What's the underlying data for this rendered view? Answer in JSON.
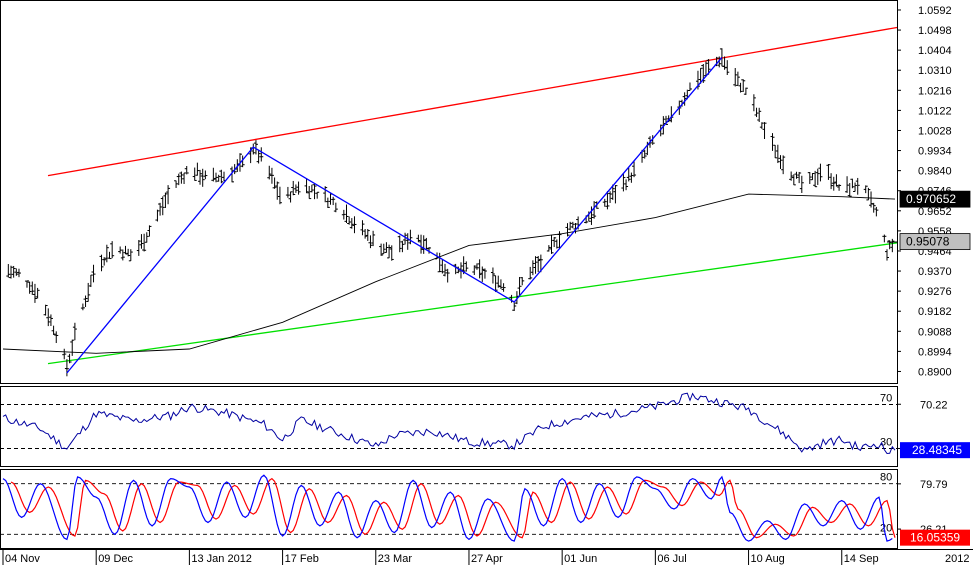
{
  "chart_data": [
    {
      "type": "candlestick",
      "panel": "price",
      "x_axis_type": "date",
      "x_tick_labels": [
        "04 Nov",
        "09 Dec",
        "13 Jan 2012",
        "17 Feb",
        "23 Mar",
        "27 Apr",
        "01 Jun",
        "06 Jul",
        "10 Aug",
        "14 Sep"
      ],
      "x_tick_dates": [
        "2011-11-04",
        "2011-12-09",
        "2012-01-13",
        "2012-02-17",
        "2012-03-23",
        "2012-04-27",
        "2012-06-01",
        "2012-07-06",
        "2012-08-10",
        "2012-09-14"
      ],
      "axis_end_label": "2012",
      "x_range": [
        "2011-11-04",
        "2012-10-04"
      ],
      "y_tick_labels": [
        "1.0592",
        "1.0498",
        "1.0404",
        "1.0310",
        "1.0216",
        "1.0122",
        "1.0028",
        "0.9934",
        "0.9840",
        "0.9746",
        "0.9652",
        "0.9558",
        "0.9464",
        "0.9370",
        "0.9276",
        "0.9182",
        "0.9088",
        "0.8994",
        "0.8900"
      ],
      "ylim": [
        0.886,
        1.062
      ],
      "series": [
        {
          "name": "",
          "kind": "ohlc_close",
          "points": [
            [
              "2011-11-04",
              0.938
            ],
            [
              "2011-11-11",
              0.935
            ],
            [
              "2011-11-18",
              0.925
            ],
            [
              "2011-11-25",
              0.905
            ],
            [
              "2011-11-28",
              0.892
            ],
            [
              "2011-12-02",
              0.912
            ],
            [
              "2011-12-09",
              0.94
            ],
            [
              "2011-12-16",
              0.948
            ],
            [
              "2011-12-23",
              0.944
            ],
            [
              "2011-12-30",
              0.958
            ],
            [
              "2012-01-06",
              0.975
            ],
            [
              "2012-01-13",
              0.985
            ],
            [
              "2012-01-20",
              0.98
            ],
            [
              "2012-01-27",
              0.982
            ],
            [
              "2012-02-03",
              0.988
            ],
            [
              "2012-02-06",
              0.995
            ],
            [
              "2012-02-10",
              0.988
            ],
            [
              "2012-02-17",
              0.97
            ],
            [
              "2012-02-24",
              0.978
            ],
            [
              "2012-03-02",
              0.973
            ],
            [
              "2012-03-09",
              0.968
            ],
            [
              "2012-03-16",
              0.958
            ],
            [
              "2012-03-23",
              0.95
            ],
            [
              "2012-03-30",
              0.945
            ],
            [
              "2012-04-06",
              0.955
            ],
            [
              "2012-04-13",
              0.947
            ],
            [
              "2012-04-20",
              0.935
            ],
            [
              "2012-04-27",
              0.939
            ],
            [
              "2012-05-04",
              0.935
            ],
            [
              "2012-05-11",
              0.93
            ],
            [
              "2012-05-14",
              0.922
            ],
            [
              "2012-05-18",
              0.935
            ],
            [
              "2012-05-25",
              0.942
            ],
            [
              "2012-06-01",
              0.955
            ],
            [
              "2012-06-08",
              0.96
            ],
            [
              "2012-06-15",
              0.967
            ],
            [
              "2012-06-22",
              0.975
            ],
            [
              "2012-06-29",
              0.985
            ],
            [
              "2012-07-06",
              1.0
            ],
            [
              "2012-07-13",
              1.01
            ],
            [
              "2012-07-20",
              1.025
            ],
            [
              "2012-07-27",
              1.033
            ],
            [
              "2012-07-31",
              1.037
            ],
            [
              "2012-08-03",
              1.03
            ],
            [
              "2012-08-10",
              1.02
            ],
            [
              "2012-08-17",
              1.0
            ],
            [
              "2012-08-24",
              0.986
            ],
            [
              "2012-08-31",
              0.976
            ],
            [
              "2012-09-07",
              0.985
            ],
            [
              "2012-09-14",
              0.975
            ],
            [
              "2012-09-21",
              0.978
            ],
            [
              "2012-09-28",
              0.962
            ],
            [
              "2012-10-01",
              0.946
            ],
            [
              "2012-10-04",
              0.951
            ]
          ]
        },
        {
          "name": "",
          "kind": "moving_average",
          "points": [
            [
              "2011-11-04",
              0.9005
            ],
            [
              "2011-12-09",
              0.8985
            ],
            [
              "2012-01-13",
              0.9005
            ],
            [
              "2012-02-17",
              0.913
            ],
            [
              "2012-03-23",
              0.932
            ],
            [
              "2012-04-27",
              0.949
            ],
            [
              "2012-06-01",
              0.9545
            ],
            [
              "2012-07-06",
              0.962
            ],
            [
              "2012-08-10",
              0.973
            ],
            [
              "2012-09-14",
              0.9718
            ],
            [
              "2012-10-04",
              0.9707
            ]
          ]
        }
      ],
      "channel_upper": {
        "color": "#ff0000",
        "points": [
          [
            "2011-11-04",
            0.9763
          ],
          [
            "2012-10-04",
            1.051
          ]
        ]
      },
      "channel_lower": {
        "color": "#00e000",
        "points": [
          [
            "2011-11-04",
            0.8893
          ],
          [
            "2012-10-04",
            0.9502
          ]
        ]
      },
      "zigzag": {
        "color": "#0000ff",
        "points": [
          [
            "2011-11-28",
            0.8893
          ],
          [
            "2012-02-06",
            0.995
          ],
          [
            "2012-05-14",
            0.9225
          ],
          [
            "2012-07-31",
            1.037
          ]
        ]
      },
      "price_labels": [
        {
          "text": "0.970652",
          "bg": "#000000",
          "fg": "#ffffff",
          "value": 0.970652
        },
        {
          "text": "0.95078",
          "bg": "#c0c0c0",
          "fg": "#000000",
          "value": 0.95078
        }
      ]
    },
    {
      "type": "line",
      "panel": "rsi",
      "ylim": [
        15,
        85
      ],
      "levels": [
        70,
        30
      ],
      "y_tick_labels": [
        "70.22",
        "30.02"
      ],
      "value_label": {
        "text": "28.48345",
        "bg": "#0000ff",
        "fg": "#ffffff",
        "value": 28.48345
      },
      "series": [
        {
          "name": "",
          "color": "#0000a0",
          "points": [
            [
              "2011-11-04",
              58
            ],
            [
              "2011-11-18",
              48
            ],
            [
              "2011-11-28",
              30
            ],
            [
              "2011-12-09",
              62
            ],
            [
              "2011-12-23",
              55
            ],
            [
              "2012-01-06",
              60
            ],
            [
              "2012-01-13",
              68
            ],
            [
              "2012-01-27",
              62
            ],
            [
              "2012-02-10",
              52
            ],
            [
              "2012-02-17",
              38
            ],
            [
              "2012-02-24",
              56
            ],
            [
              "2012-03-09",
              44
            ],
            [
              "2012-03-23",
              32
            ],
            [
              "2012-03-30",
              42
            ],
            [
              "2012-04-13",
              46
            ],
            [
              "2012-04-27",
              36
            ],
            [
              "2012-05-14",
              33
            ],
            [
              "2012-05-25",
              50
            ],
            [
              "2012-06-08",
              58
            ],
            [
              "2012-06-22",
              62
            ],
            [
              "2012-07-06",
              68
            ],
            [
              "2012-07-20",
              78
            ],
            [
              "2012-07-31",
              72
            ],
            [
              "2012-08-10",
              66
            ],
            [
              "2012-08-24",
              42
            ],
            [
              "2012-08-31",
              28
            ],
            [
              "2012-09-07",
              35
            ],
            [
              "2012-09-14",
              38
            ],
            [
              "2012-09-21",
              30
            ],
            [
              "2012-09-28",
              35
            ],
            [
              "2012-10-01",
              27
            ],
            [
              "2012-10-04",
              28.48
            ]
          ]
        }
      ]
    },
    {
      "type": "line",
      "panel": "stochastic",
      "ylim": [
        5,
        95
      ],
      "levels": [
        80,
        20
      ],
      "y_tick_labels": [
        "79.79",
        "26.21"
      ],
      "value_label": {
        "text": "16.05359",
        "bg": "#ff0000",
        "fg": "#ffffff",
        "value": 16.05359
      },
      "series": [
        {
          "name": "",
          "color": "#0000ff",
          "points": [
            [
              "2011-11-04",
              86
            ],
            [
              "2011-11-11",
              40
            ],
            [
              "2011-11-18",
              80
            ],
            [
              "2011-11-28",
              14
            ],
            [
              "2011-12-02",
              88
            ],
            [
              "2011-12-09",
              64
            ],
            [
              "2011-12-16",
              20
            ],
            [
              "2011-12-23",
              84
            ],
            [
              "2011-12-30",
              30
            ],
            [
              "2012-01-06",
              86
            ],
            [
              "2012-01-13",
              76
            ],
            [
              "2012-01-20",
              34
            ],
            [
              "2012-01-27",
              82
            ],
            [
              "2012-02-03",
              40
            ],
            [
              "2012-02-10",
              90
            ],
            [
              "2012-02-17",
              18
            ],
            [
              "2012-02-24",
              78
            ],
            [
              "2012-03-02",
              30
            ],
            [
              "2012-03-09",
              70
            ],
            [
              "2012-03-16",
              16
            ],
            [
              "2012-03-23",
              60
            ],
            [
              "2012-03-30",
              22
            ],
            [
              "2012-04-06",
              84
            ],
            [
              "2012-04-13",
              28
            ],
            [
              "2012-04-20",
              70
            ],
            [
              "2012-04-27",
              14
            ],
            [
              "2012-05-04",
              62
            ],
            [
              "2012-05-14",
              12
            ],
            [
              "2012-05-18",
              74
            ],
            [
              "2012-05-25",
              30
            ],
            [
              "2012-06-01",
              86
            ],
            [
              "2012-06-08",
              34
            ],
            [
              "2012-06-15",
              80
            ],
            [
              "2012-06-22",
              40
            ],
            [
              "2012-06-29",
              88
            ],
            [
              "2012-07-06",
              74
            ],
            [
              "2012-07-13",
              50
            ],
            [
              "2012-07-20",
              86
            ],
            [
              "2012-07-27",
              62
            ],
            [
              "2012-07-31",
              88
            ],
            [
              "2012-08-03",
              46
            ],
            [
              "2012-08-10",
              12
            ],
            [
              "2012-08-17",
              36
            ],
            [
              "2012-08-24",
              14
            ],
            [
              "2012-08-31",
              56
            ],
            [
              "2012-09-07",
              30
            ],
            [
              "2012-09-14",
              60
            ],
            [
              "2012-09-21",
              26
            ],
            [
              "2012-09-28",
              64
            ],
            [
              "2012-10-01",
              12
            ],
            [
              "2012-10-04",
              16.05
            ]
          ]
        },
        {
          "name": "",
          "color": "#ff0000",
          "lag_days": 3,
          "points": [
            [
              "2011-11-04",
              82
            ],
            [
              "2011-11-11",
              46
            ],
            [
              "2011-11-18",
              76
            ],
            [
              "2011-11-28",
              18
            ],
            [
              "2011-12-02",
              84
            ],
            [
              "2011-12-09",
              68
            ],
            [
              "2011-12-16",
              24
            ],
            [
              "2011-12-23",
              80
            ],
            [
              "2011-12-30",
              34
            ],
            [
              "2012-01-06",
              82
            ],
            [
              "2012-01-13",
              78
            ],
            [
              "2012-01-20",
              38
            ],
            [
              "2012-01-27",
              78
            ],
            [
              "2012-02-03",
              44
            ],
            [
              "2012-02-10",
              86
            ],
            [
              "2012-02-17",
              22
            ],
            [
              "2012-02-24",
              74
            ],
            [
              "2012-03-02",
              34
            ],
            [
              "2012-03-09",
              66
            ],
            [
              "2012-03-16",
              20
            ],
            [
              "2012-03-23",
              58
            ],
            [
              "2012-03-30",
              26
            ],
            [
              "2012-04-06",
              80
            ],
            [
              "2012-04-13",
              32
            ],
            [
              "2012-04-20",
              66
            ],
            [
              "2012-04-27",
              18
            ],
            [
              "2012-05-04",
              58
            ],
            [
              "2012-05-14",
              16
            ],
            [
              "2012-05-18",
              70
            ],
            [
              "2012-05-25",
              34
            ],
            [
              "2012-06-01",
              82
            ],
            [
              "2012-06-08",
              38
            ],
            [
              "2012-06-15",
              76
            ],
            [
              "2012-06-22",
              44
            ],
            [
              "2012-06-29",
              84
            ],
            [
              "2012-07-06",
              76
            ],
            [
              "2012-07-13",
              54
            ],
            [
              "2012-07-20",
              82
            ],
            [
              "2012-07-27",
              66
            ],
            [
              "2012-07-31",
              84
            ],
            [
              "2012-08-03",
              50
            ],
            [
              "2012-08-10",
              16
            ],
            [
              "2012-08-17",
              32
            ],
            [
              "2012-08-24",
              18
            ],
            [
              "2012-08-31",
              52
            ],
            [
              "2012-09-07",
              34
            ],
            [
              "2012-09-14",
              56
            ],
            [
              "2012-09-21",
              30
            ],
            [
              "2012-09-28",
              60
            ],
            [
              "2012-10-01",
              16
            ],
            [
              "2012-10-04",
              17
            ]
          ]
        }
      ]
    }
  ]
}
